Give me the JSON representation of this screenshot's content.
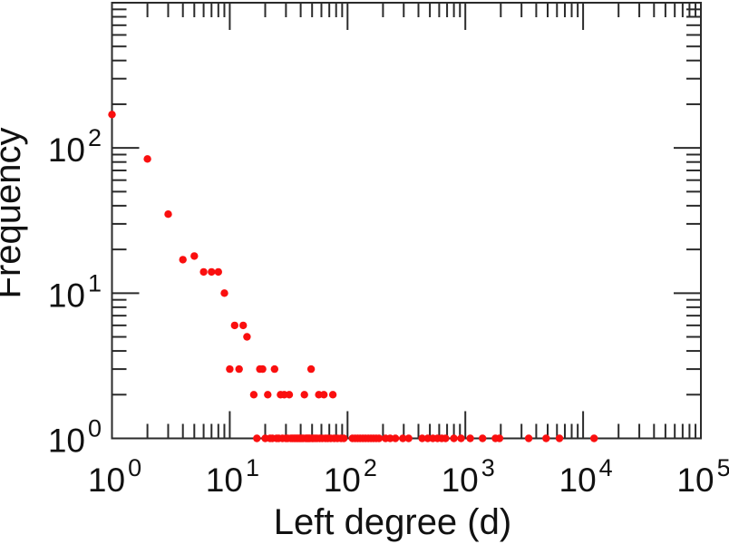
{
  "figure": {
    "background": "#ffffff",
    "axis_color": "#2b2b2b",
    "text_color": "#111111",
    "dot_color": "#fa0f0f"
  },
  "chart_data": {
    "type": "scatter",
    "title": "",
    "xlabel": "Left degree (d)",
    "ylabel": "Frequency",
    "x_scale": "log",
    "y_scale": "log",
    "xlim": [
      1,
      100000
    ],
    "ylim": [
      1,
      1000
    ],
    "grid": false,
    "legend": null,
    "x_tick_exponents": [
      0,
      1,
      2,
      3,
      4,
      5
    ],
    "y_tick_exponents": [
      0,
      1,
      2
    ],
    "tick_label_base": "10",
    "marker": "filled-circle",
    "points": [
      [
        1,
        170
      ],
      [
        2,
        84
      ],
      [
        3,
        35
      ],
      [
        4,
        17
      ],
      [
        5,
        18
      ],
      [
        6,
        14
      ],
      [
        7,
        14
      ],
      [
        8,
        14
      ],
      [
        9,
        10
      ],
      [
        10,
        3
      ],
      [
        11,
        6
      ],
      [
        12,
        3
      ],
      [
        13,
        6
      ],
      [
        14,
        5
      ],
      [
        16,
        2
      ],
      [
        17,
        1
      ],
      [
        18,
        3
      ],
      [
        19,
        3
      ],
      [
        20,
        1
      ],
      [
        21,
        2
      ],
      [
        22,
        1
      ],
      [
        23,
        1
      ],
      [
        24,
        3
      ],
      [
        25,
        1
      ],
      [
        26,
        1
      ],
      [
        27,
        2
      ],
      [
        28,
        1
      ],
      [
        29,
        2
      ],
      [
        30,
        1
      ],
      [
        31,
        1
      ],
      [
        32,
        2
      ],
      [
        33,
        1
      ],
      [
        34,
        1
      ],
      [
        35,
        1
      ],
      [
        36,
        1
      ],
      [
        37,
        1
      ],
      [
        38,
        1
      ],
      [
        39,
        1
      ],
      [
        40,
        1
      ],
      [
        41,
        1
      ],
      [
        42,
        1
      ],
      [
        43,
        2
      ],
      [
        44,
        1
      ],
      [
        45,
        1
      ],
      [
        46,
        1
      ],
      [
        47,
        1
      ],
      [
        48,
        1
      ],
      [
        49,
        3
      ],
      [
        50,
        1
      ],
      [
        51,
        1
      ],
      [
        53,
        1
      ],
      [
        55,
        1
      ],
      [
        57,
        2
      ],
      [
        58,
        1
      ],
      [
        61,
        1
      ],
      [
        63,
        2
      ],
      [
        65,
        1
      ],
      [
        68,
        1
      ],
      [
        72,
        1
      ],
      [
        75,
        2
      ],
      [
        77,
        1
      ],
      [
        82,
        1
      ],
      [
        88,
        1
      ],
      [
        93,
        1
      ],
      [
        110,
        1
      ],
      [
        116,
        1
      ],
      [
        122,
        1
      ],
      [
        128,
        1
      ],
      [
        135,
        1
      ],
      [
        142,
        1
      ],
      [
        150,
        1
      ],
      [
        158,
        1
      ],
      [
        166,
        1
      ],
      [
        175,
        1
      ],
      [
        185,
        1
      ],
      [
        210,
        1
      ],
      [
        230,
        1
      ],
      [
        255,
        1
      ],
      [
        295,
        1
      ],
      [
        330,
        1
      ],
      [
        430,
        1
      ],
      [
        480,
        1
      ],
      [
        530,
        1
      ],
      [
        580,
        1
      ],
      [
        630,
        1
      ],
      [
        680,
        1
      ],
      [
        800,
        1
      ],
      [
        920,
        1
      ],
      [
        1100,
        1
      ],
      [
        1400,
        1
      ],
      [
        1800,
        1
      ],
      [
        1950,
        1
      ],
      [
        3450,
        1
      ],
      [
        4850,
        1
      ],
      [
        6300,
        1
      ],
      [
        12400,
        1
      ]
    ]
  }
}
